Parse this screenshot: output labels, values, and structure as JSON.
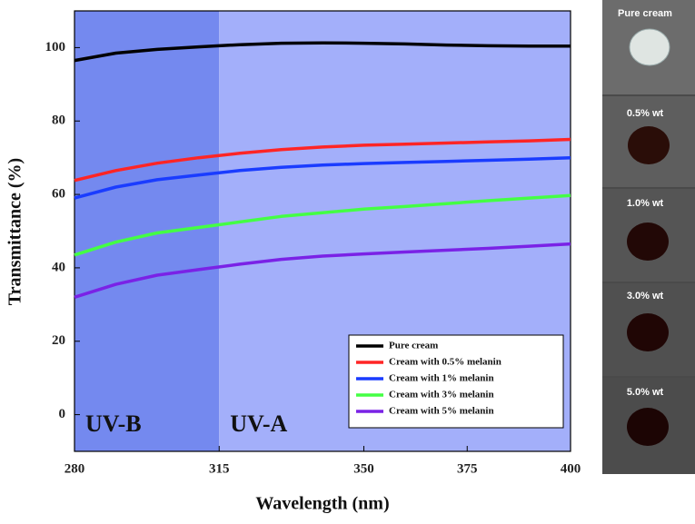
{
  "chart_data": {
    "type": "line",
    "xlabel": "Wavelength (nm)",
    "ylabel": "Transmittance (%)",
    "x": [
      280,
      290,
      300,
      310,
      320,
      330,
      340,
      350,
      360,
      370,
      380,
      390,
      400
    ],
    "series": [
      {
        "name": "Pure cream",
        "color": "#000000",
        "values": [
          96.5,
          98.5,
          99.5,
          100.2,
          100.8,
          101.2,
          101.3,
          101.2,
          101,
          100.7,
          100.5,
          100.4,
          100.4
        ]
      },
      {
        "name": "Cream with 0.5% melanin",
        "color": "#ff2525",
        "values": [
          63.8,
          66.5,
          68.5,
          70,
          71.2,
          72.2,
          72.9,
          73.4,
          73.7,
          74,
          74.3,
          74.6,
          75
        ]
      },
      {
        "name": "Cream with 1% melanin",
        "color": "#1a3cff",
        "values": [
          59,
          62,
          64,
          65.3,
          66.5,
          67.4,
          68,
          68.4,
          68.7,
          69,
          69.3,
          69.6,
          70
        ]
      },
      {
        "name": "Cream with 3% melanin",
        "color": "#44ff44",
        "values": [
          43.5,
          47,
          49.5,
          51,
          52.5,
          54,
          55,
          56,
          56.7,
          57.5,
          58.3,
          59,
          59.7
        ]
      },
      {
        "name": "Cream with 5% melanin",
        "color": "#7a22e6",
        "values": [
          32,
          35.5,
          38,
          39.5,
          41,
          42.3,
          43.2,
          43.8,
          44.3,
          44.8,
          45.3,
          45.9,
          46.5
        ]
      }
    ],
    "regions": [
      {
        "label": "UV-B",
        "range": [
          280,
          315
        ],
        "color": "#7489ef"
      },
      {
        "label": "UV-A",
        "range": [
          315,
          400
        ],
        "color": "#a3affa"
      }
    ],
    "xlim": [
      280,
      400
    ],
    "xticks": [
      280,
      315,
      350,
      375,
      400
    ],
    "ylim": [
      -10,
      110
    ],
    "yticks": [
      0,
      20,
      40,
      60,
      80,
      100
    ],
    "legend": "lower right"
  },
  "photo_panel": {
    "labels": [
      "Pure cream",
      "0.5% wt",
      "1.0% wt",
      "3.0% wt",
      "5.0% wt"
    ]
  }
}
